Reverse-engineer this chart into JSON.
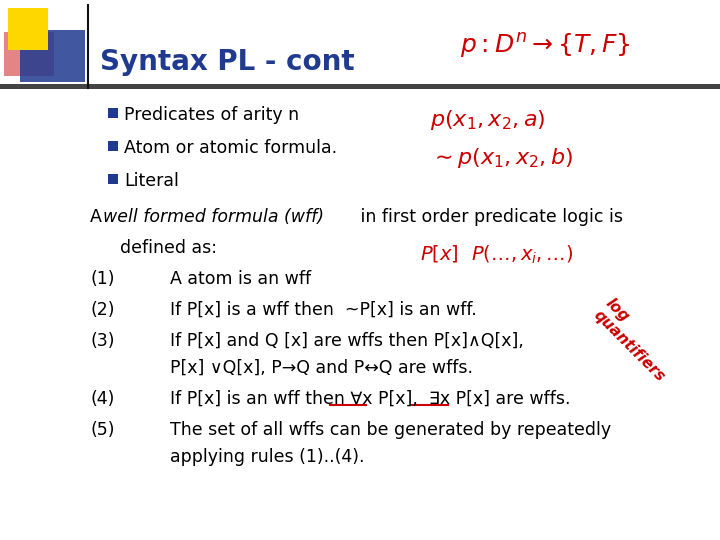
{
  "title": "Syntax PL - cont",
  "title_color": "#1F3A8F",
  "title_fontsize": 20,
  "background_color": "#FFFFFF",
  "bullet_color": "#1F3A8F",
  "text_color": "#000000",
  "bullets": [
    "Predicates of arity n",
    "Atom or atomic formula.",
    "Literal"
  ],
  "logo_yellow": "#FFD700",
  "logo_red": "#CC2222",
  "logo_blue": "#1F3A8F",
  "red_annot": "#CC0000",
  "separator_color": "#555555",
  "fontsize_body": 12.5
}
